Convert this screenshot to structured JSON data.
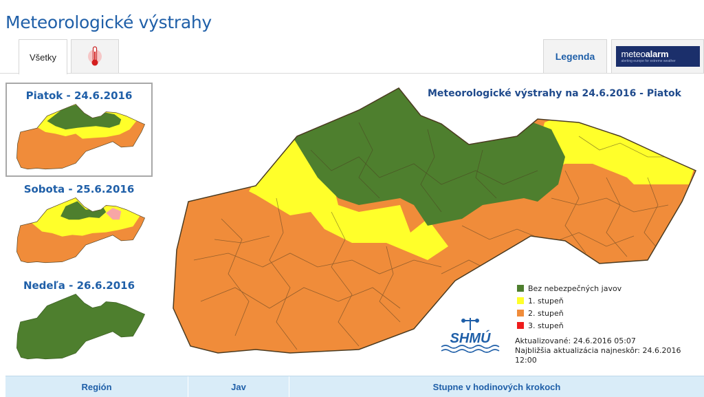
{
  "page": {
    "title": "Meteorologické výstrahy"
  },
  "tabs": {
    "all_label": "Všetky",
    "temperature_icon": "thermometer-icon",
    "legend_label": "Legenda",
    "meteoalarm": {
      "wordmark_light": "meteo",
      "wordmark_bold": "alarm",
      "tagline": "alerting europe for extreme weather"
    }
  },
  "days": [
    {
      "label": "Piatok - 24.6.2016",
      "selected": true
    },
    {
      "label": "Sobota - 25.6.2016",
      "selected": false
    },
    {
      "label": "Nedeľa - 26.6.2016",
      "selected": false
    }
  ],
  "map": {
    "title": "Meteorologické výstrahy na 24.6.2016 - Piatok",
    "legend": [
      {
        "label": "Bez nebezpečných javov",
        "color": "#4e7f2e"
      },
      {
        "label": "1. stupeň",
        "color": "#ffff2a"
      },
      {
        "label": "2. stupeň",
        "color": "#f08c3a"
      },
      {
        "label": "3. stupeň",
        "color": "#ee1c1c"
      }
    ],
    "logo_text": "SHMÚ",
    "updated": "Aktualizované: 24.6.2016 05:07",
    "next_update": "Najbližšia aktualizácia najneskôr: 24.6.2016 12:00"
  },
  "table": {
    "headers": [
      "Región",
      "Jav",
      "Stupne v hodinových krokoch"
    ]
  }
}
